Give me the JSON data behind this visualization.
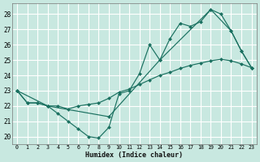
{
  "xlabel": "Humidex (Indice chaleur)",
  "bg_color": "#c8e8e0",
  "grid_color": "#ffffff",
  "line_color": "#1a7060",
  "xlim": [
    -0.5,
    23.5
  ],
  "ylim": [
    19.5,
    28.7
  ],
  "xticks": [
    0,
    1,
    2,
    3,
    4,
    5,
    6,
    7,
    8,
    9,
    10,
    11,
    12,
    13,
    14,
    15,
    16,
    17,
    18,
    19,
    20,
    21,
    22,
    23
  ],
  "yticks": [
    20,
    21,
    22,
    23,
    24,
    25,
    26,
    27,
    28
  ],
  "series": [
    {
      "x": [
        0,
        1,
        2,
        3,
        4,
        5,
        6,
        7,
        8,
        9,
        10,
        11,
        12,
        13,
        14,
        15,
        16,
        17,
        18,
        19,
        20,
        21,
        22,
        23
      ],
      "y": [
        23,
        22.2,
        22.2,
        22,
        21.5,
        21,
        20.5,
        20,
        19.9,
        20.6,
        22.8,
        23.0,
        24.1,
        26.0,
        25.0,
        26.4,
        27.4,
        27.2,
        27.5,
        28.3,
        28.0,
        26.9,
        25.6,
        24.5
      ]
    },
    {
      "x": [
        0,
        1,
        2,
        3,
        4,
        5,
        6,
        7,
        8,
        9,
        10,
        11,
        12,
        13,
        14,
        15,
        16,
        17,
        18,
        19,
        20,
        21,
        22,
        23
      ],
      "y": [
        23,
        22.2,
        22.2,
        22.0,
        22.0,
        21.8,
        22.0,
        22.1,
        22.2,
        22.5,
        22.9,
        23.1,
        23.4,
        23.7,
        24.0,
        24.2,
        24.45,
        24.65,
        24.8,
        24.95,
        25.05,
        24.95,
        24.75,
        24.5
      ]
    },
    {
      "x": [
        0,
        3,
        9,
        14,
        19,
        21,
        22,
        23
      ],
      "y": [
        23,
        22,
        21.3,
        25.0,
        28.3,
        26.9,
        25.6,
        24.5
      ]
    }
  ]
}
